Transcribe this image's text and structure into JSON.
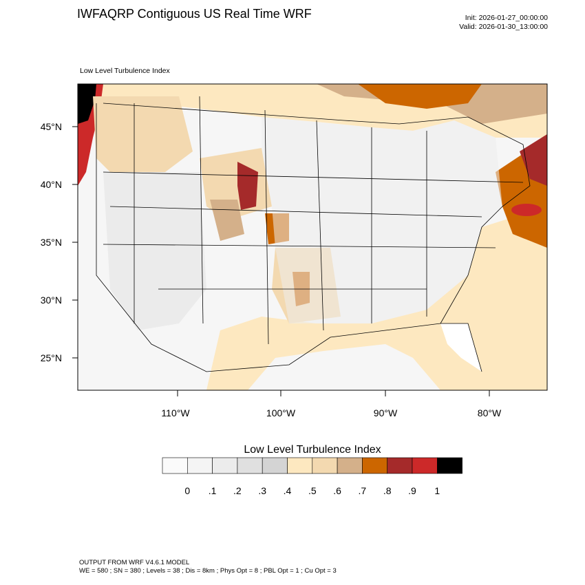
{
  "header": {
    "title": "IWFAQRP Contiguous US Real Time WRF",
    "init": "Init: 2026-01-27_00:00:00",
    "valid": "Valid: 2026-01-30_13:00:00"
  },
  "map": {
    "subtitle": "Low Level Turbulence Index",
    "lat_labels": [
      "45°N",
      "40°N",
      "35°N",
      "30°N",
      "25°N"
    ],
    "lon_labels": [
      "110°W",
      "100°W",
      "90°W",
      "80°W"
    ]
  },
  "colorbar": {
    "title": "Low Level Turbulence Index",
    "ticks": [
      "0",
      ".1",
      ".2",
      ".3",
      ".4",
      ".5",
      ".6",
      ".7",
      ".8",
      ".9",
      "1"
    ],
    "colors": [
      "#fafafa",
      "#f4f4f4",
      "#ececec",
      "#e0e0e0",
      "#d4d4d4",
      "#fde8c0",
      "#f3d9b0",
      "#d4b08a",
      "#cc6600",
      "#a52a2a",
      "#cc2929",
      "#000000"
    ]
  },
  "footer": {
    "line1": "OUTPUT FROM WRF V4.6.1 MODEL",
    "line2": "WE = 580 ; SN = 380 ; Levels = 38 ; Dis = 8km ; Phys Opt = 8 ; PBL Opt = 1 ; Cu Opt = 3"
  }
}
